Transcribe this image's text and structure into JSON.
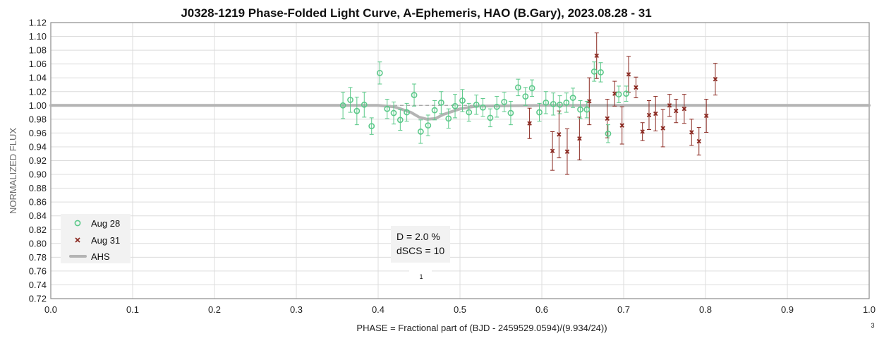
{
  "chart_data": {
    "type": "scatter",
    "title": "J0328-1219 Phase-Folded Light Curve, A-Ephemeris, HAO (B.Gary), 2023.08.28 - 31",
    "xlabel": "PHASE = Fractional part of (BJD - 2459529.0594)/(9.934/24))",
    "ylabel": "NORMALIZED FLUX",
    "xlim": [
      0.0,
      1.0
    ],
    "ylim": [
      0.72,
      1.12
    ],
    "x_ticks": [
      "0.0",
      "0.1",
      "0.2",
      "0.3",
      "0.4",
      "0.5",
      "0.6",
      "0.7",
      "0.8",
      "0.9",
      "1.0"
    ],
    "y_ticks": [
      "0.72",
      "0.74",
      "0.76",
      "0.78",
      "0.80",
      "0.82",
      "0.84",
      "0.86",
      "0.88",
      "0.90",
      "0.92",
      "0.94",
      "0.96",
      "0.98",
      "1.00",
      "1.02",
      "1.04",
      "1.06",
      "1.08",
      "1.10",
      "1.12"
    ],
    "grid": true,
    "legend_position": "bottom-left",
    "reference_line": 1.0,
    "annotation": [
      "D = 2.0 %",
      "dSCS = 10"
    ],
    "annotation_footnote": "1",
    "corner_footnote": "3",
    "series": [
      {
        "name": "Aug 28",
        "marker": "circle",
        "color": "#5cc98a",
        "points": [
          [
            0.357,
            1.0,
            0.019
          ],
          [
            0.366,
            1.008,
            0.018
          ],
          [
            0.374,
            0.992,
            0.02
          ],
          [
            0.383,
            1.001,
            0.018
          ],
          [
            0.392,
            0.97,
            0.012
          ],
          [
            0.402,
            1.047,
            0.016
          ],
          [
            0.411,
            0.995,
            0.014
          ],
          [
            0.419,
            0.989,
            0.016
          ],
          [
            0.427,
            0.979,
            0.015
          ],
          [
            0.435,
            0.99,
            0.013
          ],
          [
            0.444,
            1.015,
            0.016
          ],
          [
            0.452,
            0.962,
            0.017
          ],
          [
            0.461,
            0.971,
            0.015
          ],
          [
            0.469,
            0.993,
            0.014
          ],
          [
            0.477,
            1.004,
            0.016
          ],
          [
            0.486,
            0.981,
            0.014
          ],
          [
            0.494,
            0.999,
            0.017
          ],
          [
            0.503,
            1.007,
            0.016
          ],
          [
            0.511,
            0.99,
            0.013
          ],
          [
            0.52,
            1.001,
            0.014
          ],
          [
            0.528,
            0.997,
            0.013
          ],
          [
            0.537,
            0.982,
            0.013
          ],
          [
            0.545,
            0.998,
            0.015
          ],
          [
            0.554,
            1.005,
            0.014
          ],
          [
            0.562,
            0.989,
            0.017
          ],
          [
            0.571,
            1.026,
            0.012
          ],
          [
            0.58,
            1.013,
            0.013
          ],
          [
            0.588,
            1.025,
            0.012
          ],
          [
            0.597,
            0.99,
            0.013
          ],
          [
            0.605,
            1.004,
            0.016
          ],
          [
            0.614,
            1.002,
            0.016
          ],
          [
            0.622,
            1.001,
            0.013
          ],
          [
            0.63,
            1.004,
            0.014
          ],
          [
            0.638,
            1.011,
            0.014
          ],
          [
            0.647,
            0.994,
            0.013
          ],
          [
            0.655,
            0.994,
            0.012
          ],
          [
            0.664,
            1.049,
            0.014
          ],
          [
            0.672,
            1.048,
            0.014
          ],
          [
            0.681,
            0.959,
            0.013
          ],
          [
            0.694,
            1.016,
            0.012
          ],
          [
            0.703,
            1.017,
            0.011
          ]
        ]
      },
      {
        "name": "Aug 31",
        "marker": "x",
        "color": "#8b2a22",
        "points": [
          [
            0.585,
            0.974,
            0.022
          ],
          [
            0.613,
            0.934,
            0.028
          ],
          [
            0.621,
            0.958,
            0.034
          ],
          [
            0.631,
            0.933,
            0.033
          ],
          [
            0.646,
            0.952,
            0.031
          ],
          [
            0.658,
            1.006,
            0.034
          ],
          [
            0.667,
            1.072,
            0.033
          ],
          [
            0.68,
            0.981,
            0.028
          ],
          [
            0.689,
            1.017,
            0.018
          ],
          [
            0.698,
            0.971,
            0.027
          ],
          [
            0.706,
            1.045,
            0.026
          ],
          [
            0.715,
            1.026,
            0.015
          ],
          [
            0.723,
            0.962,
            0.013
          ],
          [
            0.731,
            0.986,
            0.021
          ],
          [
            0.739,
            0.988,
            0.025
          ],
          [
            0.748,
            0.967,
            0.027
          ],
          [
            0.756,
            1.0,
            0.016
          ],
          [
            0.764,
            0.992,
            0.017
          ],
          [
            0.774,
            0.995,
            0.021
          ],
          [
            0.783,
            0.961,
            0.019
          ],
          [
            0.792,
            0.948,
            0.02
          ],
          [
            0.801,
            0.985,
            0.024
          ],
          [
            0.812,
            1.038,
            0.023
          ]
        ]
      },
      {
        "name": "AHS",
        "type": "line",
        "color": "#b4b4b4",
        "x": [
          0.355,
          0.4,
          0.42,
          0.44,
          0.45,
          0.46,
          0.47,
          0.48,
          0.5,
          0.52,
          0.6,
          0.65,
          0.7,
          0.82
        ],
        "y": [
          1.0,
          1.0,
          0.998,
          0.99,
          0.983,
          0.98,
          0.981,
          0.987,
          0.995,
          0.999,
          1.0,
          1.0,
          1.0,
          1.0
        ]
      }
    ]
  }
}
